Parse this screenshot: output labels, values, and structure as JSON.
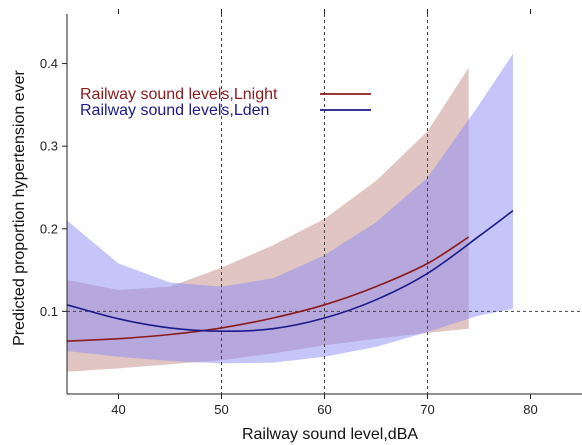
{
  "chart_data": {
    "type": "line",
    "title": "",
    "xlabel": "Railway sound level,dBA",
    "ylabel": "Predicted proportion hypertension ever",
    "xlim": [
      35,
      85
    ],
    "ylim": [
      0,
      0.46
    ],
    "x_ticks": [
      40,
      50,
      60,
      70,
      80
    ],
    "x_tick_labels": [
      "40",
      "50",
      "60",
      "70",
      "80"
    ],
    "y_ticks": [
      0.1,
      0.2,
      0.3,
      0.4
    ],
    "y_tick_labels": [
      "0.1",
      "0.2",
      "0.3",
      "0.4"
    ],
    "reference_lines": {
      "vertical": [
        50,
        60,
        70
      ],
      "horizontal": [
        0.1
      ],
      "style": "dashed"
    },
    "legend_position": "top-left",
    "series": [
      {
        "name": "Railway sound levels,Lnight",
        "color": "#8b1a1a",
        "band_color": "#c9958f",
        "x": [
          35,
          40,
          45,
          50,
          55,
          60,
          65,
          70,
          74
        ],
        "y": [
          0.064,
          0.067,
          0.072,
          0.08,
          0.092,
          0.108,
          0.13,
          0.158,
          0.19
        ],
        "ci_lower": [
          0.027,
          0.031,
          0.036,
          0.041,
          0.049,
          0.059,
          0.067,
          0.074,
          0.079
        ],
        "ci_upper": [
          0.138,
          0.126,
          0.13,
          0.153,
          0.18,
          0.212,
          0.258,
          0.318,
          0.395
        ]
      },
      {
        "name": "Railway sound levels,Lden",
        "color": "#1a1a8b",
        "band_color": "#8c8cf5",
        "x": [
          35,
          40,
          45,
          50,
          55,
          60,
          65,
          70,
          75,
          78.3
        ],
        "y": [
          0.108,
          0.091,
          0.08,
          0.076,
          0.079,
          0.092,
          0.114,
          0.146,
          0.191,
          0.222
        ],
        "ci_lower": [
          0.052,
          0.045,
          0.04,
          0.037,
          0.038,
          0.045,
          0.057,
          0.075,
          0.095,
          0.103
        ],
        "ci_upper": [
          0.21,
          0.158,
          0.135,
          0.13,
          0.14,
          0.168,
          0.208,
          0.262,
          0.35,
          0.412
        ]
      }
    ]
  }
}
